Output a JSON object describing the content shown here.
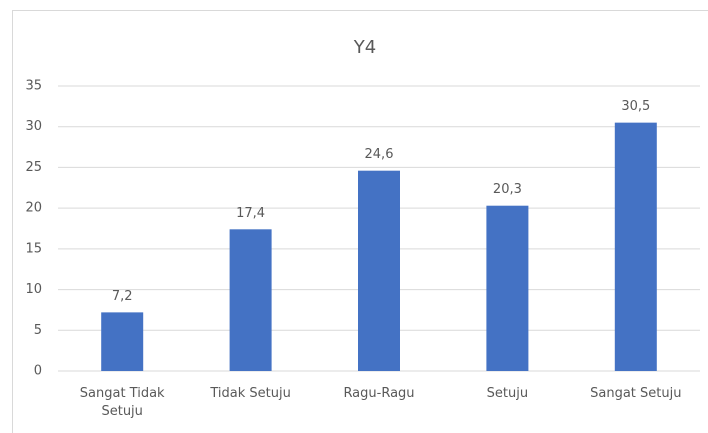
{
  "chart_data": {
    "type": "bar",
    "title": "Y4",
    "categories": [
      "Sangat Tidak Setuju",
      "Tidak Setuju",
      "Ragu-Ragu",
      "Setuju",
      "Sangat Setuju"
    ],
    "values": [
      7.2,
      17.4,
      24.6,
      20.3,
      30.5
    ],
    "value_labels": [
      "7,2",
      "17,4",
      "24,6",
      "20,3",
      "30,5"
    ],
    "color": "#4472c4",
    "ylim": [
      0,
      35
    ],
    "yticks": [
      0,
      5,
      10,
      15,
      20,
      25,
      30,
      35
    ],
    "grid": true
  }
}
